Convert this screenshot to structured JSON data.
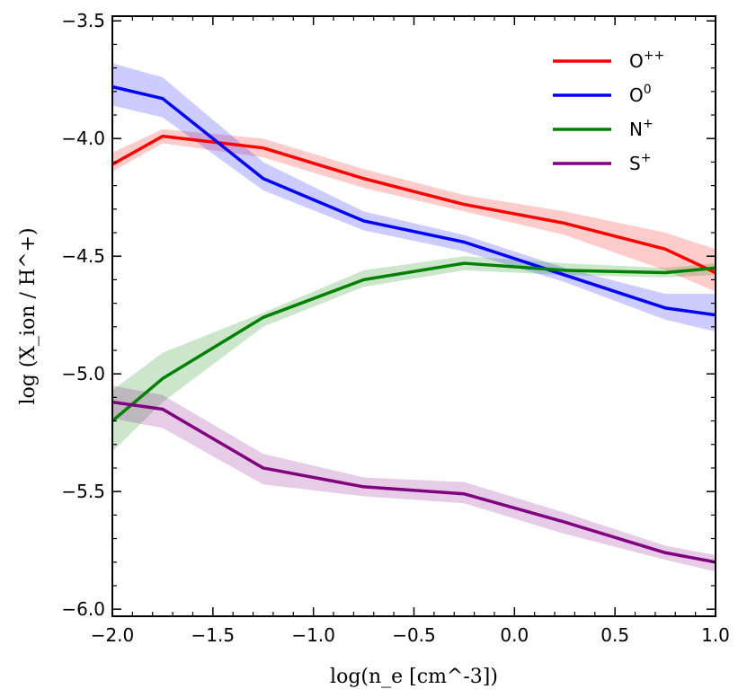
{
  "chart_data": {
    "type": "line",
    "title": "",
    "xlabel": "log(n_e [cm^-3])",
    "ylabel": "log (X_ion / H^+)",
    "xlim": [
      -2.0,
      1.0
    ],
    "ylim": [
      -6.03,
      -3.48
    ],
    "xticks": [
      -2.0,
      -1.5,
      -1.0,
      -0.5,
      0.0,
      0.5,
      1.0
    ],
    "xtick_labels": [
      "−2.0",
      "−1.5",
      "−1.0",
      "−0.5",
      "0.0",
      "0.5",
      "1.0"
    ],
    "yticks": [
      -3.5,
      -4.0,
      -4.5,
      -5.0,
      -5.5,
      -6.0
    ],
    "ytick_labels": [
      "−3.5",
      "−4.0",
      "−4.5",
      "−5.0",
      "−5.5",
      "−6.0"
    ],
    "legend_position": "top-right",
    "x": [
      -2.0,
      -1.75,
      -1.25,
      -0.75,
      -0.25,
      0.25,
      0.75,
      1.0
    ],
    "series": [
      {
        "name": "O++",
        "label_base": "O",
        "label_sup": "++",
        "color": "#ff0000",
        "values": [
          -4.11,
          -3.99,
          -4.04,
          -4.17,
          -4.28,
          -4.36,
          -4.47,
          -4.57
        ],
        "lower": [
          -4.14,
          -4.02,
          -4.08,
          -4.21,
          -4.31,
          -4.41,
          -4.56,
          -4.65
        ],
        "upper": [
          -4.06,
          -3.96,
          -4.0,
          -4.13,
          -4.24,
          -4.31,
          -4.4,
          -4.47
        ]
      },
      {
        "name": "O0",
        "label_base": "O",
        "label_sup": "0",
        "color": "#0000ff",
        "values": [
          -3.78,
          -3.83,
          -4.17,
          -4.35,
          -4.44,
          -4.58,
          -4.72,
          -4.75
        ],
        "lower": [
          -3.86,
          -3.91,
          -4.22,
          -4.39,
          -4.48,
          -4.61,
          -4.77,
          -4.82
        ],
        "upper": [
          -3.68,
          -3.74,
          -4.1,
          -4.31,
          -4.41,
          -4.55,
          -4.66,
          -4.66
        ]
      },
      {
        "name": "N+",
        "label_base": "N",
        "label_sup": "+",
        "color": "#008000",
        "values": [
          -5.2,
          -5.02,
          -4.76,
          -4.6,
          -4.53,
          -4.56,
          -4.57,
          -4.55
        ],
        "lower": [
          -5.33,
          -5.12,
          -4.8,
          -4.63,
          -4.56,
          -4.58,
          -4.59,
          -4.58
        ],
        "upper": [
          -5.07,
          -4.91,
          -4.74,
          -4.56,
          -4.5,
          -4.53,
          -4.55,
          -4.53
        ]
      },
      {
        "name": "S+",
        "label_base": "S",
        "label_sup": "+",
        "color": "#800080",
        "values": [
          -5.12,
          -5.15,
          -5.4,
          -5.48,
          -5.51,
          -5.63,
          -5.76,
          -5.8
        ],
        "lower": [
          -5.19,
          -5.23,
          -5.47,
          -5.52,
          -5.55,
          -5.68,
          -5.79,
          -5.84
        ],
        "upper": [
          -5.05,
          -5.09,
          -5.34,
          -5.44,
          -5.46,
          -5.59,
          -5.73,
          -5.77
        ]
      }
    ]
  }
}
